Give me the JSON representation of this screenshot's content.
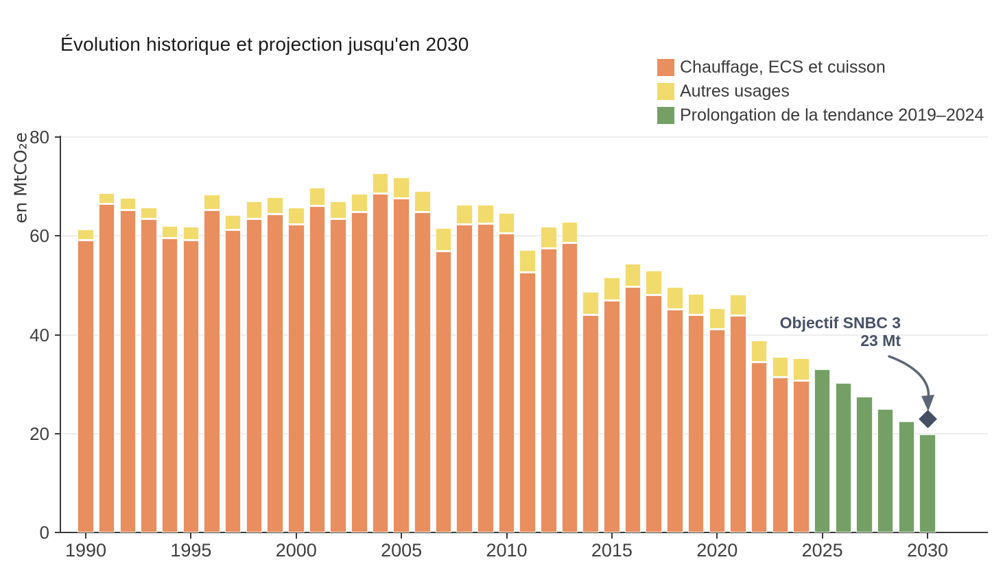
{
  "title": "Évolution historique et projection jusqu'en 2030",
  "y_axis": {
    "label": "en MtCO₂e",
    "ticks": [
      0,
      20,
      40,
      60,
      80
    ]
  },
  "x_axis": {
    "ticks": [
      1990,
      1995,
      2000,
      2005,
      2010,
      2015,
      2020,
      2025,
      2030
    ]
  },
  "legend": [
    {
      "label": "Chauffage, ECS et cuisson",
      "color": "#E98E5F"
    },
    {
      "label": "Autres usages",
      "color": "#F2DB6D"
    },
    {
      "label": "Prolongation de la tendance 2019–2024",
      "color": "#74A066"
    }
  ],
  "annotation": {
    "line1": "Objectif SNBC 3",
    "line2": "23 Mt",
    "target_value_mt": 23,
    "target_year": 2030
  },
  "colors": {
    "chauffage": "#E98E5F",
    "autres": "#F2DB6D",
    "prolongation": "#74A066",
    "annotation_text": "#475166",
    "arrow": "#5C6576",
    "diamond": "#454F63",
    "axis": "#3a3a3a",
    "gridline": "#ededed"
  },
  "chart_data": {
    "type": "bar",
    "stacked": true,
    "title": "Évolution historique et projection jusqu'en 2030",
    "ylabel": "en MtCO₂e",
    "ylim": [
      0,
      80
    ],
    "grid": true,
    "legend_position": "top-right",
    "x": [
      1990,
      1991,
      1992,
      1993,
      1994,
      1995,
      1996,
      1997,
      1998,
      1999,
      2000,
      2001,
      2002,
      2003,
      2004,
      2005,
      2006,
      2007,
      2008,
      2009,
      2010,
      2011,
      2012,
      2013,
      2014,
      2015,
      2016,
      2017,
      2018,
      2019,
      2020,
      2021,
      2022,
      2023,
      2024,
      2025,
      2026,
      2027,
      2028,
      2029,
      2030
    ],
    "series": [
      {
        "name": "Chauffage, ECS et cuisson",
        "color": "#E98E5F",
        "values": [
          59.0,
          66.4,
          65.2,
          63.3,
          59.5,
          59.1,
          65.2,
          61.2,
          63.4,
          64.4,
          62.2,
          66.0,
          63.4,
          64.8,
          68.5,
          67.5,
          64.7,
          56.9,
          62.3,
          62.4,
          60.5,
          52.5,
          57.4,
          58.5,
          44.0,
          46.8,
          49.7,
          48.0,
          45.0,
          43.9,
          41.1,
          43.8,
          34.4,
          31.3,
          30.7,
          null,
          null,
          null,
          null,
          null,
          null
        ]
      },
      {
        "name": "Autres usages",
        "color": "#F2DB6D",
        "values": [
          2.3,
          2.3,
          2.4,
          2.4,
          2.5,
          2.7,
          3.2,
          3.0,
          3.6,
          3.4,
          3.5,
          3.7,
          3.6,
          3.7,
          4.1,
          4.3,
          4.3,
          4.6,
          4.0,
          3.9,
          4.1,
          4.6,
          4.5,
          4.3,
          4.6,
          4.8,
          4.7,
          5.0,
          4.7,
          4.3,
          4.3,
          4.3,
          4.4,
          4.2,
          4.5,
          null,
          null,
          null,
          null,
          null,
          null
        ]
      },
      {
        "name": "Prolongation de la tendance 2019–2024",
        "color": "#74A066",
        "values": [
          null,
          null,
          null,
          null,
          null,
          null,
          null,
          null,
          null,
          null,
          null,
          null,
          null,
          null,
          null,
          null,
          null,
          null,
          null,
          null,
          null,
          null,
          null,
          null,
          null,
          null,
          null,
          null,
          null,
          null,
          null,
          null,
          null,
          null,
          null,
          33.0,
          30.2,
          27.5,
          24.9,
          22.4,
          19.8
        ]
      }
    ],
    "annotation": {
      "text": "Objectif SNBC 3 — 23 Mt",
      "x": 2030,
      "y": 23,
      "marker": "diamond"
    }
  }
}
